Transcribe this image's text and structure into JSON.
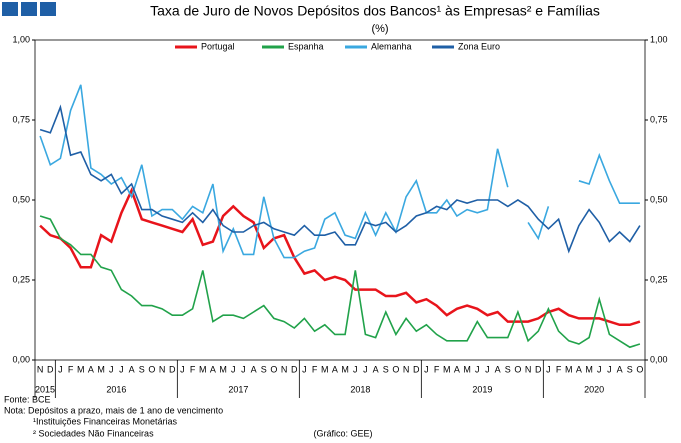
{
  "chart_data": {
    "type": "line",
    "title": "Taxa de Juro de Novos Depósitos dos Bancos¹ às Empresas² e Famílias",
    "subtitle": "(%)",
    "categories": [
      "N",
      "D",
      "J",
      "F",
      "M",
      "A",
      "M",
      "J",
      "J",
      "A",
      "S",
      "O",
      "N",
      "D",
      "J",
      "F",
      "M",
      "A",
      "M",
      "J",
      "J",
      "A",
      "S",
      "O",
      "N",
      "D",
      "J",
      "F",
      "M",
      "A",
      "M",
      "J",
      "J",
      "A",
      "S",
      "O",
      "N",
      "D",
      "J",
      "F",
      "M",
      "A",
      "M",
      "J",
      "J",
      "A",
      "S",
      "O",
      "N",
      "D",
      "J",
      "F",
      "M",
      "A",
      "M",
      "J",
      "J",
      "A",
      "S",
      "O"
    ],
    "years": [
      "2015",
      "2016",
      "2017",
      "2018",
      "2019",
      "2020"
    ],
    "series": [
      {
        "name": "Portugal",
        "color": "#e8141b",
        "values": [
          0.42,
          0.39,
          0.38,
          0.35,
          0.29,
          0.29,
          0.39,
          0.37,
          0.46,
          0.53,
          0.44,
          0.43,
          0.42,
          0.41,
          0.4,
          0.44,
          0.36,
          0.37,
          0.45,
          0.48,
          0.45,
          0.43,
          0.35,
          0.38,
          0.39,
          0.32,
          0.27,
          0.28,
          0.25,
          0.26,
          0.25,
          0.22,
          0.22,
          0.22,
          0.2,
          0.2,
          0.21,
          0.18,
          0.19,
          0.17,
          0.14,
          0.16,
          0.17,
          0.16,
          0.14,
          0.15,
          0.12,
          0.12,
          0.12,
          0.13,
          0.15,
          0.16,
          0.14,
          0.13,
          0.13,
          0.13,
          0.12,
          0.11,
          0.11,
          0.12
        ]
      },
      {
        "name": "Espanha",
        "color": "#21a24a",
        "values": [
          0.45,
          0.44,
          0.38,
          0.36,
          0.33,
          0.33,
          0.29,
          0.28,
          0.22,
          0.2,
          0.17,
          0.17,
          0.16,
          0.14,
          0.14,
          0.16,
          0.28,
          0.12,
          0.14,
          0.14,
          0.13,
          0.15,
          0.17,
          0.13,
          0.12,
          0.1,
          0.13,
          0.09,
          0.11,
          0.08,
          0.08,
          0.28,
          0.08,
          0.07,
          0.15,
          0.08,
          0.13,
          0.09,
          0.11,
          0.08,
          0.06,
          0.06,
          0.06,
          0.12,
          0.07,
          0.07,
          0.07,
          0.15,
          0.06,
          0.09,
          0.16,
          0.09,
          0.06,
          0.05,
          0.07,
          0.19,
          0.08,
          0.06,
          0.04,
          0.05
        ]
      },
      {
        "name": "Alemanha",
        "color": "#3aa8e0",
        "values": [
          0.7,
          0.61,
          0.63,
          0.78,
          0.86,
          0.6,
          0.58,
          0.55,
          0.57,
          0.51,
          0.61,
          0.45,
          0.47,
          0.47,
          0.44,
          0.48,
          0.46,
          0.55,
          0.34,
          0.41,
          0.33,
          0.33,
          0.51,
          0.38,
          0.32,
          0.32,
          0.34,
          0.35,
          0.44,
          0.46,
          0.39,
          0.38,
          0.46,
          0.39,
          0.46,
          0.4,
          0.51,
          0.56,
          0.46,
          0.46,
          0.5,
          0.45,
          0.47,
          0.46,
          0.47,
          0.66,
          0.54,
          null,
          0.43,
          0.38,
          0.48,
          null,
          null,
          0.56,
          0.55,
          0.64,
          0.56,
          0.49,
          0.49,
          0.49
        ]
      },
      {
        "name": "Zona Euro",
        "color": "#1f5fa6",
        "values": [
          0.72,
          0.71,
          0.79,
          0.64,
          0.65,
          0.58,
          0.56,
          0.58,
          0.52,
          0.55,
          0.47,
          0.47,
          0.45,
          0.44,
          0.43,
          0.46,
          0.43,
          0.47,
          0.42,
          0.4,
          0.4,
          0.42,
          0.43,
          0.41,
          0.4,
          0.39,
          0.42,
          0.39,
          0.39,
          0.4,
          0.36,
          0.36,
          0.43,
          0.42,
          0.43,
          0.4,
          0.42,
          0.45,
          0.46,
          0.48,
          0.47,
          0.5,
          0.49,
          0.5,
          0.5,
          0.5,
          0.48,
          0.5,
          0.48,
          0.44,
          0.41,
          0.44,
          0.34,
          0.42,
          0.47,
          0.43,
          0.37,
          0.4,
          0.37,
          0.42
        ]
      }
    ],
    "ylim": [
      0,
      1
    ],
    "yticks": [
      {
        "value": 0,
        "label": "0,00"
      },
      {
        "value": 0.25,
        "label": "0,25"
      },
      {
        "value": 0.5,
        "label": "0,50"
      },
      {
        "value": 0.75,
        "label": "0,75"
      },
      {
        "value": 1,
        "label": "1,00"
      }
    ],
    "notes": [
      "Fonte: BCE",
      "Nota: Depósitos a prazo, mais de 1 ano de vencimento",
      "¹Instituições Financeiras Monetárias",
      "² Sociedades Não Financeiras"
    ],
    "credit": "(Gráfico: GEE)"
  }
}
